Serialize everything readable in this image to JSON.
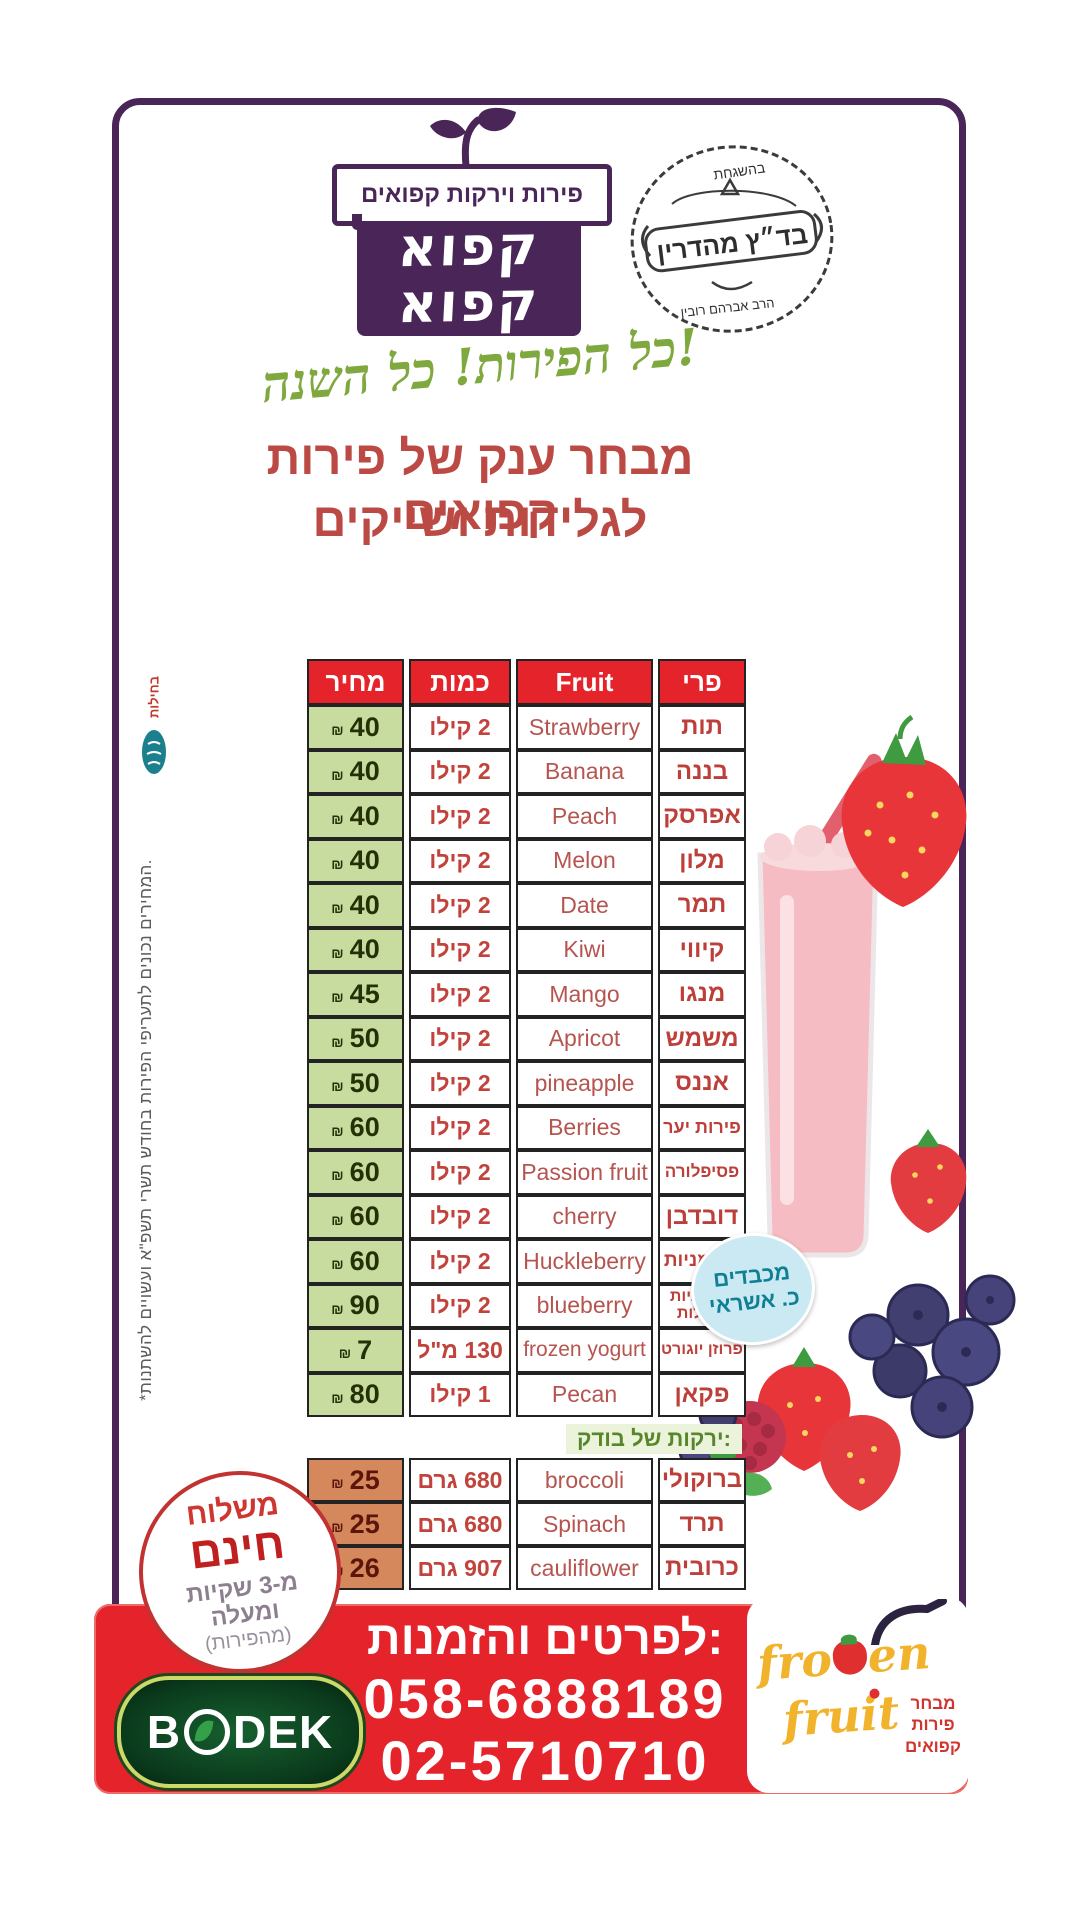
{
  "brand": {
    "tagline": "פירות וירקות קפואים",
    "logo_line1": "קפוא",
    "logo_line2": "קפוא"
  },
  "stamp": {
    "top": "בהשגחת",
    "main": "בד״ץ מהדרין",
    "bottom": "הרב אברהם רובין"
  },
  "headline": {
    "script": "כל הפירות! כל השנה!",
    "title_line1": "מבחר ענק של פירות קפואים",
    "title_line2": "לגלידות ושייקים"
  },
  "table": {
    "currency": "₪",
    "headers": {
      "price": "מחיר",
      "qty": "כמות",
      "fruit_en": "Fruit",
      "fruit_he": "פרי"
    },
    "fruits": [
      {
        "en": "Strawberry",
        "he": "תות",
        "qty": "2 קילו",
        "price": "40"
      },
      {
        "en": "Banana",
        "he": "בננה",
        "qty": "2 קילו",
        "price": "40"
      },
      {
        "en": "Peach",
        "he": "אפרסק",
        "qty": "2 קילו",
        "price": "40"
      },
      {
        "en": "Melon",
        "he": "מלון",
        "qty": "2 קילו",
        "price": "40"
      },
      {
        "en": "Date",
        "he": "תמר",
        "qty": "2 קילו",
        "price": "40"
      },
      {
        "en": "Kiwi",
        "he": "קיווי",
        "qty": "2 קילו",
        "price": "40"
      },
      {
        "en": "Mango",
        "he": "מנגו",
        "qty": "2 קילו",
        "price": "45"
      },
      {
        "en": "Apricot",
        "he": "משמש",
        "qty": "2 קילו",
        "price": "50"
      },
      {
        "en": "pineapple",
        "he": "אננס",
        "qty": "2 קילו",
        "price": "50"
      },
      {
        "en": "Berries",
        "he": "פירות יער",
        "qty": "2 קילו",
        "price": "60"
      },
      {
        "en": "Passion fruit",
        "he": "פסיפלורה",
        "qty": "2 קילו",
        "price": "60"
      },
      {
        "en": "cherry",
        "he": "דובדבן",
        "qty": "2 קילו",
        "price": "60"
      },
      {
        "en": "Huckleberry",
        "he": "אוכמניות",
        "qty": "2 קילו",
        "price": "60"
      },
      {
        "en": "blueberry",
        "he": "אוכמניות כחולות",
        "qty": "2 קילו",
        "price": "90"
      },
      {
        "en": "frozen yogurt",
        "he": "פרוזן יוגורט",
        "qty": "130 מ\"ל",
        "price": "7"
      },
      {
        "en": "Pecan",
        "he": "פקאן",
        "qty": "1 קילו",
        "price": "80"
      }
    ],
    "veg_section_label": "ירקות של בודק:",
    "vegetables": [
      {
        "en": "broccoli",
        "he": "ברוקולי",
        "qty": "680 גרם",
        "price": "25"
      },
      {
        "en": "Spinach",
        "he": "תרד",
        "qty": "680 גרם",
        "price": "25"
      },
      {
        "en": "cauliflower",
        "he": "כרובית",
        "qty": "907 גרם",
        "price": "26"
      }
    ]
  },
  "badges": {
    "free_delivery": {
      "line1": "משלוח",
      "line2": "חינם",
      "line3": "מ-3 שקיות",
      "line4": "ומעלה",
      "line5": "(מהפירות)"
    },
    "credit_card": {
      "line1": "מכבדים",
      "line2": "כ. אשראי"
    }
  },
  "footer": {
    "contact_label": "לפרטים והזמנות:",
    "phone1": "058-6888189",
    "phone2": "02-5710710",
    "bodek_b": "B",
    "bodek_dek": "DEK",
    "frozen_word1a": "fro",
    "frozen_word1b": "en",
    "frozen_word2": "fruit",
    "frozen_sub1": "מבחר",
    "frozen_sub2": "פירות",
    "frozen_sub3": "קפואים"
  },
  "side": {
    "note": "*המחירים נכונים לתעריפי הפירות בחודש תשרי תשפ\"א ועשויים להשתנות.",
    "credit": "בחילות"
  },
  "colors": {
    "banner_red": "#e4232b",
    "header_red": "#e4232a",
    "frame_purple": "#4a2558",
    "script_green": "#7fa83e",
    "price_cell_green": "#c9dc9f",
    "veg_price_orange": "#d4885c",
    "title_maroon": "#bc4a44",
    "bodek_green": "#0a3a1c",
    "frozen_yellow": "#f0b32b",
    "credit_badge_blue": "#cbe9f2"
  }
}
